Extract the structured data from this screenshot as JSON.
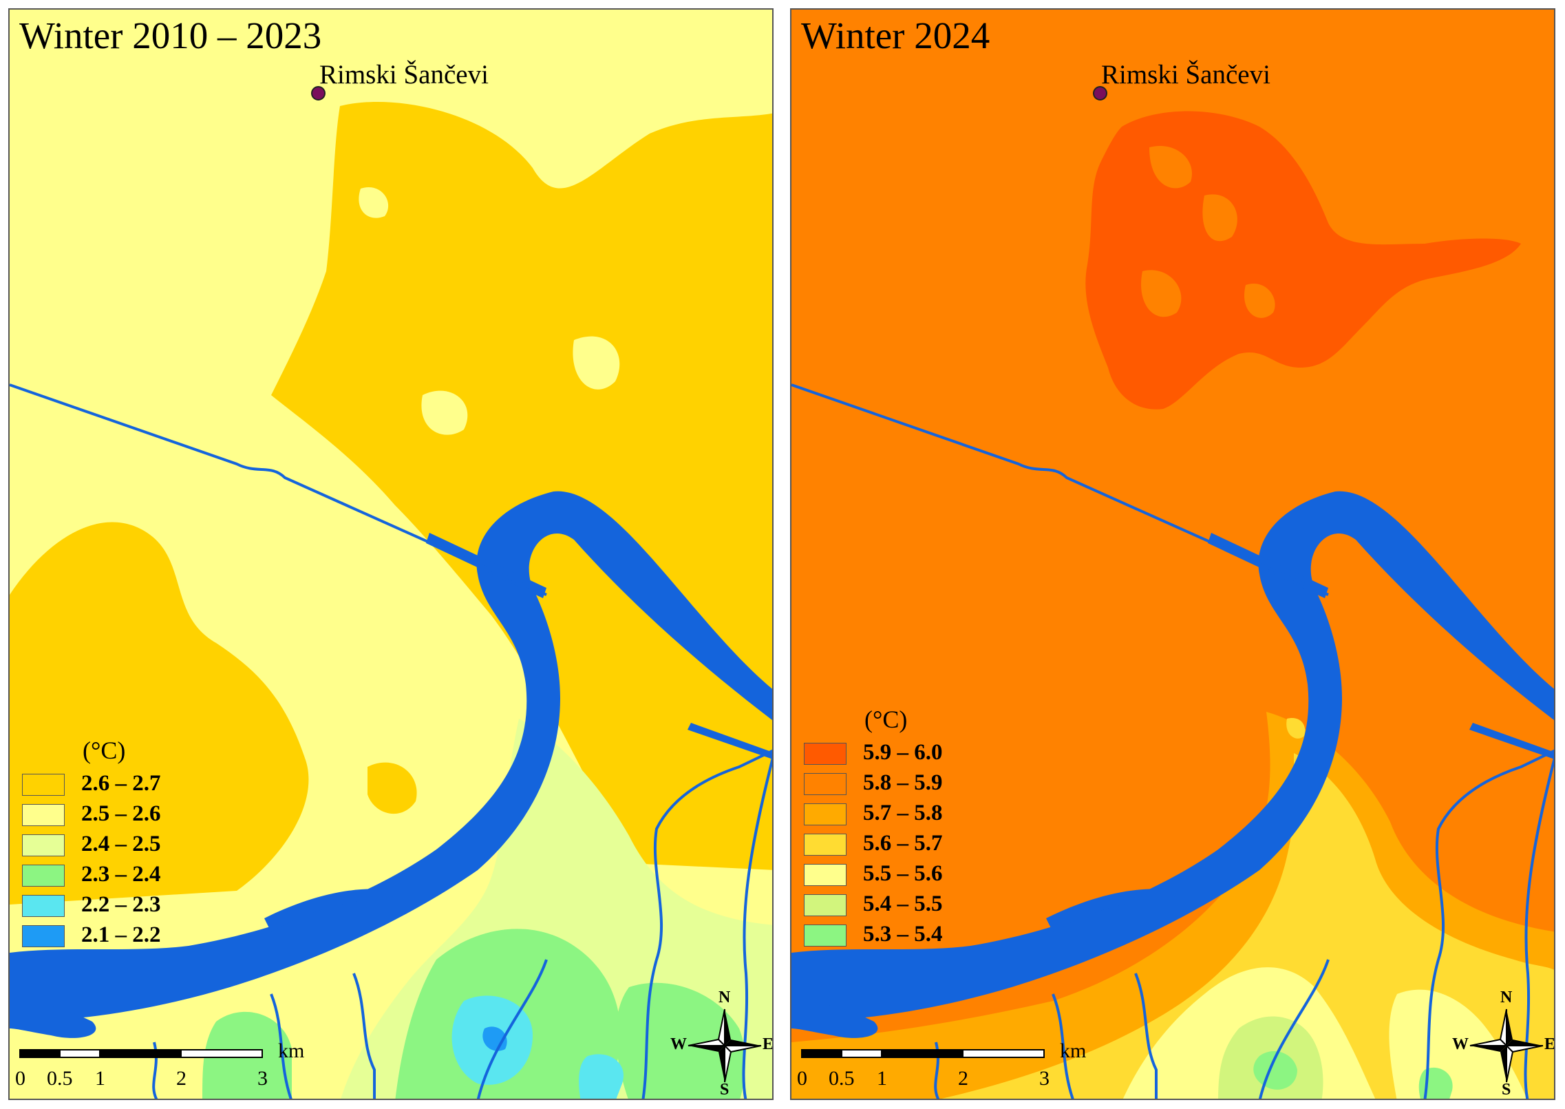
{
  "panels": [
    {
      "title": "Winter 2010 – 2023",
      "site_label": "Rimski Šančevi",
      "legend_unit": "(°C)",
      "legend": [
        {
          "label": "2.6 – 2.7",
          "color": "#ffd200"
        },
        {
          "label": "2.5 – 2.6",
          "color": "#ffff8c"
        },
        {
          "label": "2.4 – 2.5",
          "color": "#e6ff96"
        },
        {
          "label": "2.3 – 2.4",
          "color": "#8cf582"
        },
        {
          "label": "2.2 – 2.3",
          "color": "#5ae6f0"
        },
        {
          "label": "2.1 – 2.2",
          "color": "#1e9bf5"
        }
      ],
      "scale_unit": "km",
      "scale_ticks": [
        "0",
        "0.5",
        "1",
        "2",
        "3"
      ],
      "compass": {
        "n": "N",
        "s": "S",
        "e": "E",
        "w": "W"
      }
    },
    {
      "title": "Winter 2024",
      "site_label": "Rimski Šančevi",
      "legend_unit": "(°C)",
      "legend": [
        {
          "label": "5.9 – 6.0",
          "color": "#ff5a00"
        },
        {
          "label": "5.8 – 5.9",
          "color": "#ff8200"
        },
        {
          "label": "5.7 – 5.8",
          "color": "#ffaa00"
        },
        {
          "label": "5.6 – 5.7",
          "color": "#ffdc32"
        },
        {
          "label": "5.5 – 5.6",
          "color": "#ffff8c"
        },
        {
          "label": "5.4 – 5.5",
          "color": "#d2f57d"
        },
        {
          "label": "5.3 – 5.4",
          "color": "#8cf582"
        }
      ],
      "scale_unit": "km",
      "scale_ticks": [
        "0",
        "0.5",
        "1",
        "2",
        "3"
      ],
      "compass": {
        "n": "N",
        "s": "S",
        "e": "E",
        "w": "W"
      }
    }
  ],
  "colors": {
    "river": "#1464dc",
    "left_base": "#ffff8c",
    "left_warm": "#ffd200",
    "right_base": "#ff8200",
    "right_hot": "#ff5a00"
  }
}
